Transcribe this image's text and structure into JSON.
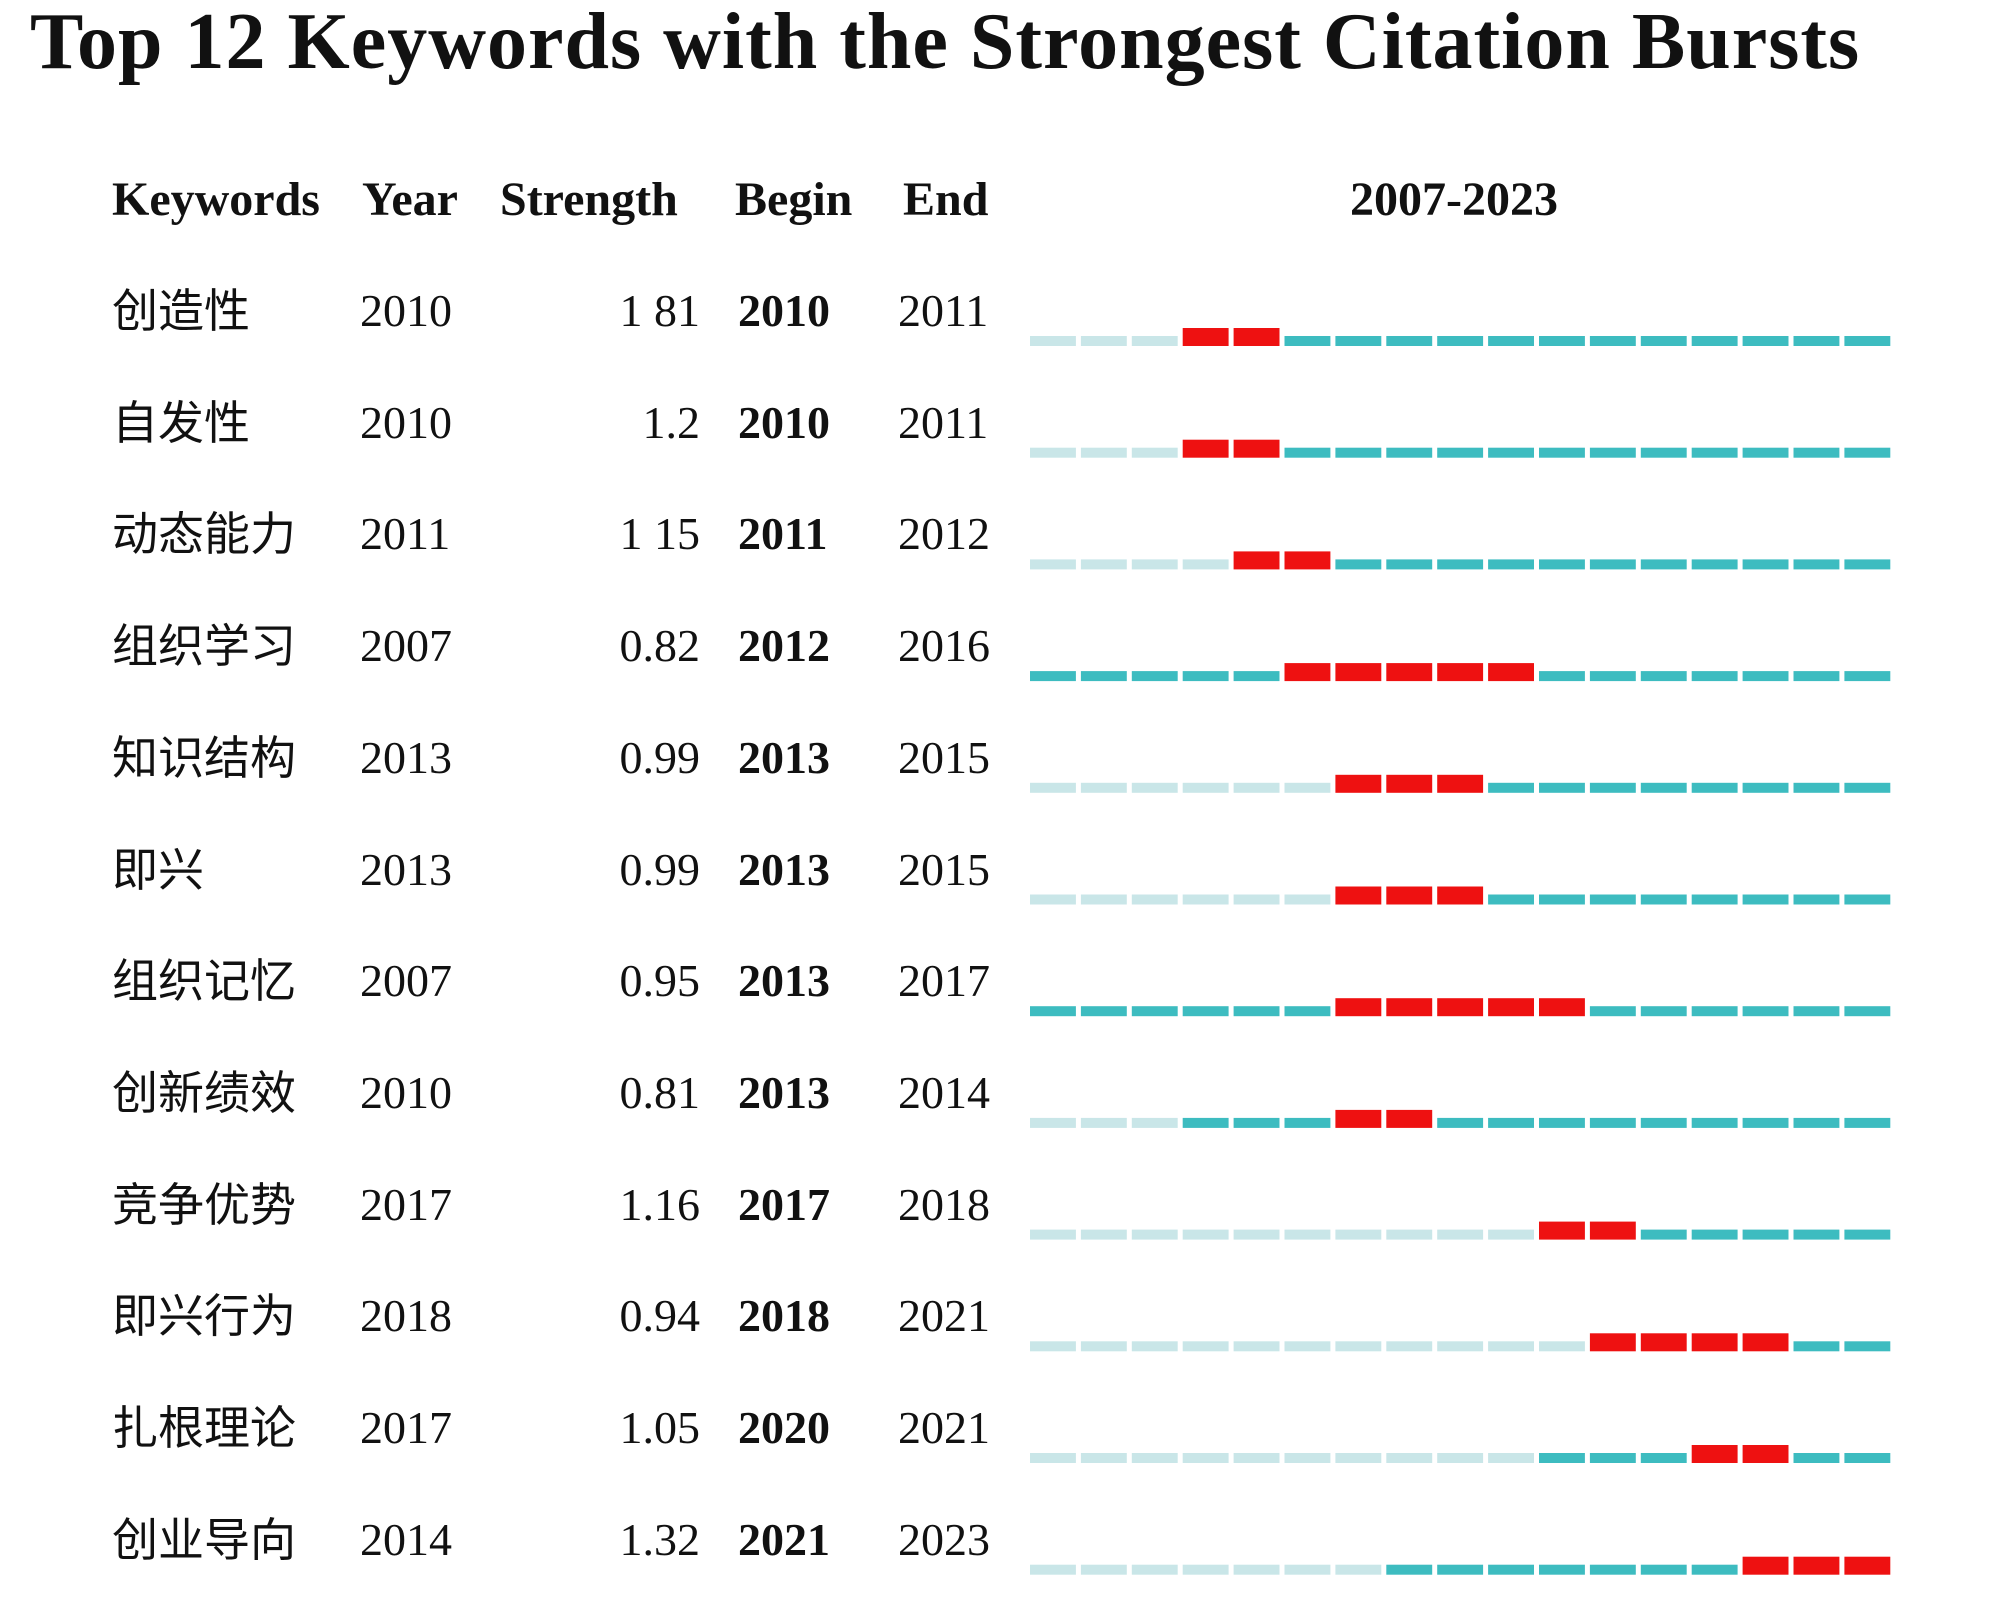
{
  "chart_data": {
    "type": "table",
    "title": "Top 12 Keywords with the Strongest Citation Bursts",
    "columns": [
      "Keywords",
      "Year",
      "Strength",
      "Begin",
      "End"
    ],
    "range_label": "2007-2023",
    "start_year": 2007,
    "end_year": 2023,
    "colors": {
      "burst": "#ee1111",
      "active": "#3dbcc0",
      "inactive": "#c9e6e8"
    },
    "rows": [
      {
        "keyword": "创造性",
        "year": "2010",
        "strength": "1 81",
        "begin": "2010",
        "end": "2011"
      },
      {
        "keyword": "自发性",
        "year": "2010",
        "strength": "1.2",
        "begin": "2010",
        "end": "2011"
      },
      {
        "keyword": "动态能力",
        "year": "2011",
        "strength": "1 15",
        "begin": "2011",
        "end": "2012"
      },
      {
        "keyword": "组织学习",
        "year": "2007",
        "strength": "0.82",
        "begin": "2012",
        "end": "2016"
      },
      {
        "keyword": "知识结构",
        "year": "2013",
        "strength": "0.99",
        "begin": "2013",
        "end": "2015"
      },
      {
        "keyword": "即兴",
        "year": "2013",
        "strength": "0.99",
        "begin": "2013",
        "end": "2015"
      },
      {
        "keyword": "组织记忆",
        "year": "2007",
        "strength": "0.95",
        "begin": "2013",
        "end": "2017"
      },
      {
        "keyword": "创新绩效",
        "year": "2010",
        "strength": "0.81",
        "begin": "2013",
        "end": "2014"
      },
      {
        "keyword": "竞争优势",
        "year": "2017",
        "strength": "1.16",
        "begin": "2017",
        "end": "2018"
      },
      {
        "keyword": "即兴行为",
        "year": "2018",
        "strength": "0.94",
        "begin": "2018",
        "end": "2021"
      },
      {
        "keyword": "扎根理论",
        "year": "2017",
        "strength": "1.05",
        "begin": "2020",
        "end": "2021"
      },
      {
        "keyword": "创业导向",
        "year": "2014",
        "strength": "1.32",
        "begin": "2021",
        "end": "2023"
      }
    ]
  }
}
